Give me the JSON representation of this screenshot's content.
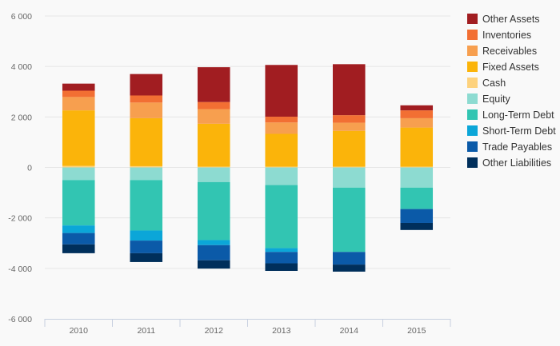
{
  "chart_data": {
    "type": "bar",
    "stacked": true,
    "categories": [
      "2010",
      "2011",
      "2012",
      "2013",
      "2014",
      "2015"
    ],
    "ylim": [
      -6000,
      6000
    ],
    "yticks": [
      6000,
      4000,
      2000,
      0,
      -2000,
      -4000,
      -6000
    ],
    "ytick_labels": [
      "6 000",
      "4 000",
      "2 000",
      "0",
      "-2 000",
      "-4 000",
      "-6 000"
    ],
    "grid": true,
    "legend_position": "right",
    "title": "",
    "xlabel": "",
    "ylabel": "",
    "series": [
      {
        "name": "Other Assets",
        "color": "#a11d21",
        "values": [
          280,
          850,
          1380,
          2050,
          2020,
          200
        ]
      },
      {
        "name": "Inventories",
        "color": "#f26f33",
        "values": [
          250,
          280,
          280,
          230,
          300,
          310
        ]
      },
      {
        "name": "Receivables",
        "color": "#f79f4f",
        "values": [
          530,
          620,
          580,
          450,
          320,
          370
        ]
      },
      {
        "name": "Fixed Assets",
        "color": "#fbb40a",
        "values": [
          2200,
          1900,
          1700,
          1300,
          1420,
          1550
        ]
      },
      {
        "name": "Cash",
        "color": "#fdd27d",
        "values": [
          60,
          50,
          30,
          30,
          30,
          30
        ]
      },
      {
        "name": "Equity",
        "color": "#8ddbd1",
        "values": [
          -500,
          -500,
          -580,
          -700,
          -800,
          -800
        ]
      },
      {
        "name": "Long-Term Debt",
        "color": "#32c5b2",
        "values": [
          -1800,
          -2000,
          -2300,
          -2500,
          -2550,
          -850
        ]
      },
      {
        "name": "Short-Term Debt",
        "color": "#0ba6d8",
        "values": [
          -300,
          -400,
          -200,
          -150,
          0,
          0
        ]
      },
      {
        "name": "Trade Payables",
        "color": "#0b5aa8",
        "values": [
          -450,
          -500,
          -600,
          -450,
          -500,
          -550
        ]
      },
      {
        "name": "Other Liabilities",
        "color": "#002f5b",
        "values": [
          -350,
          -350,
          -330,
          -300,
          -280,
          -280
        ]
      }
    ]
  }
}
